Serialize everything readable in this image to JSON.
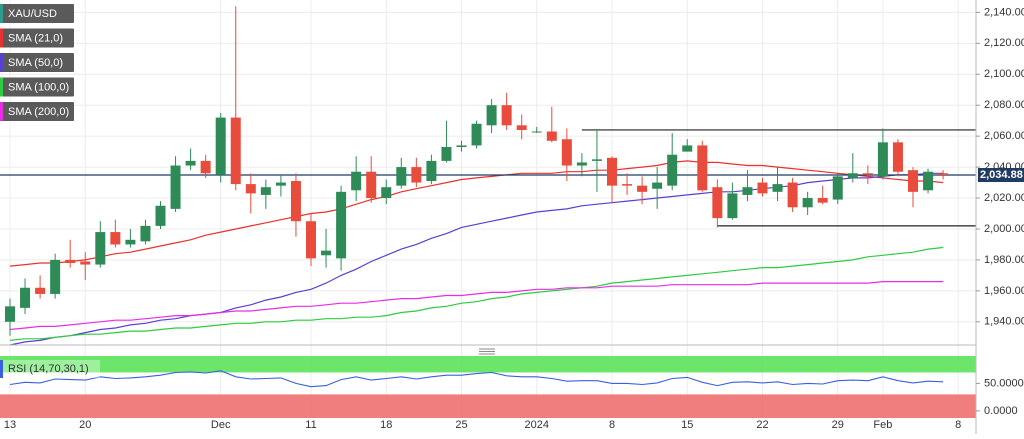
{
  "chart_data": [
    {
      "type": "candlestick",
      "symbol": "XAU/USD",
      "categories": [
        "13",
        null,
        null,
        null,
        null,
        "20",
        null,
        null,
        null,
        null,
        null,
        null,
        null,
        null,
        "Dec",
        null,
        null,
        null,
        null,
        null,
        "11",
        null,
        null,
        null,
        null,
        "18",
        null,
        null,
        null,
        null,
        "25",
        null,
        null,
        null,
        null,
        "2024",
        null,
        null,
        null,
        null,
        "8",
        null,
        null,
        null,
        null,
        "15",
        null,
        null,
        null,
        null,
        "22",
        null,
        null,
        null,
        null,
        "29",
        null,
        null,
        "Feb",
        null,
        null,
        null,
        null,
        "8"
      ],
      "open": [
        1940,
        1949,
        1962,
        1958,
        1980,
        1979,
        1977,
        1998,
        1990,
        1992,
        2002,
        2013,
        2041,
        2044,
        2035,
        2072,
        2029,
        2022,
        2028,
        2031,
        2005,
        1983,
        1981,
        2025,
        2037,
        2020,
        2028,
        2040,
        2031,
        2044,
        2053,
        2054,
        2067,
        2080,
        2067,
        2063,
        2063,
        2058,
        2041,
        2044,
        2046,
        2029,
        2028,
        2026,
        2028,
        2050,
        2054,
        2027,
        2007,
        2022,
        2030,
        2024,
        2030,
        2014,
        2020,
        2019,
        2033,
        2036,
        2034,
        2056,
        2038,
        2025,
        2036,
        null
      ],
      "high": [
        1955,
        1968,
        1970,
        1984,
        1993,
        1985,
        2005,
        2006,
        2000,
        2006,
        2018,
        2047,
        2052,
        2048,
        2075,
        2144,
        2036,
        2032,
        2035,
        2036,
        2010,
        2000,
        2028,
        2047,
        2047,
        2032,
        2046,
        2046,
        2048,
        2070,
        2057,
        2070,
        2084,
        2088,
        2074,
        2066,
        2079,
        2065,
        2049,
        2064,
        2047,
        2036,
        2034,
        2040,
        2062,
        2058,
        2057,
        2032,
        2030,
        2038,
        2033,
        2040,
        2033,
        2024,
        2028,
        2036,
        2049,
        2041,
        2065,
        2058,
        2040,
        2039,
        2038,
        null
      ],
      "low": [
        1931,
        1945,
        1955,
        1955,
        1975,
        1967,
        1975,
        1988,
        1988,
        1990,
        2000,
        2011,
        2038,
        2033,
        2030,
        2025,
        2010,
        2013,
        2021,
        1995,
        1976,
        1975,
        1973,
        2018,
        2017,
        2016,
        2026,
        2027,
        2029,
        2043,
        2050,
        2052,
        2062,
        2064,
        2058,
        2062,
        2056,
        2031,
        2034,
        2024,
        2017,
        2022,
        2016,
        2013,
        2025,
        2050,
        2024,
        2001,
        2006,
        2018,
        2021,
        2018,
        2011,
        2009,
        2016,
        2016,
        2030,
        2029,
        2032,
        2034,
        2014,
        2023,
        2032,
        null
      ],
      "close": [
        1950,
        1962,
        1958,
        1980,
        1978,
        1977,
        1998,
        1990,
        1993,
        2002,
        2015,
        2041,
        2044,
        2036,
        2072,
        2029,
        2023,
        2027,
        2030,
        2005,
        1981,
        1986,
        2024,
        2037,
        2020,
        2027,
        2040,
        2030,
        2044,
        2053,
        2054,
        2068,
        2080,
        2067,
        2064,
        2063,
        2057,
        2041,
        2043,
        2045,
        2028,
        2028,
        2024,
        2030,
        2048,
        2054,
        2025,
        2007,
        2023,
        2027,
        2023,
        2029,
        2014,
        2020,
        2017,
        2034,
        2036,
        2035,
        2056,
        2037,
        2024,
        2037,
        2034.88,
        null
      ],
      "up_color": "#2e8b57",
      "down_color": "#e74c3c",
      "series": [
        {
          "name": "SMA (21,0)",
          "color": "#e8322f",
          "values": [
            1976,
            1977,
            1978,
            1978,
            1979,
            1980,
            1982,
            1984,
            1985,
            1987,
            1989,
            1991,
            1993,
            1996,
            1998,
            2000,
            2002,
            2004,
            2006,
            2008,
            2010,
            2011,
            2013,
            2016,
            2019,
            2021,
            2024,
            2026,
            2028,
            2030,
            2032,
            2033,
            2034,
            2035,
            2036,
            2036,
            2036,
            2037,
            2037,
            2038,
            2038,
            2039,
            2040,
            2041,
            2043,
            2044,
            2043,
            2043,
            2042,
            2041,
            2041,
            2040,
            2039,
            2038,
            2037,
            2036,
            2035,
            2034,
            2033,
            2032,
            2031,
            2031,
            2030,
            null
          ]
        },
        {
          "name": "SMA (50,0)",
          "color": "#5b3fd1",
          "values": [
            1925,
            1927,
            1928,
            1930,
            1931,
            1933,
            1935,
            1936,
            1938,
            1939,
            1941,
            1942,
            1944,
            1945,
            1946,
            1949,
            1951,
            1954,
            1956,
            1959,
            1961,
            1965,
            1970,
            1974,
            1979,
            1983,
            1987,
            1990,
            1994,
            1997,
            2001,
            2003,
            2005,
            2007,
            2009,
            2011,
            2012,
            2013,
            2015,
            2016,
            2017,
            2018,
            2019,
            2020,
            2021,
            2022,
            2023,
            2024,
            2024,
            2025,
            2026,
            2027,
            2028,
            2030,
            2031,
            2032,
            2033,
            2033,
            2034,
            2035,
            2035,
            2036,
            2036,
            null
          ]
        },
        {
          "name": "SMA (100,0)",
          "color": "#2ecc40",
          "values": [
            1928,
            1929,
            1929,
            1930,
            1931,
            1932,
            1932,
            1933,
            1934,
            1934,
            1935,
            1936,
            1936,
            1937,
            1938,
            1939,
            1939,
            1940,
            1940,
            1941,
            1941,
            1942,
            1942,
            1943,
            1943,
            1944,
            1946,
            1947,
            1949,
            1950,
            1952,
            1953,
            1955,
            1956,
            1958,
            1959,
            1960,
            1961,
            1962,
            1963,
            1965,
            1966,
            1967,
            1968,
            1969,
            1970,
            1971,
            1972,
            1973,
            1974,
            1975,
            1975,
            1976,
            1977,
            1978,
            1979,
            1980,
            1982,
            1983,
            1984,
            1985,
            1987,
            1988,
            null
          ]
        },
        {
          "name": "SMA (200,0)",
          "color": "#e62ee6",
          "values": [
            1935,
            1936,
            1937,
            1937,
            1938,
            1939,
            1940,
            1941,
            1941,
            1942,
            1943,
            1944,
            1944,
            1945,
            1946,
            1947,
            1947,
            1948,
            1949,
            1950,
            1950,
            1951,
            1952,
            1952,
            1953,
            1954,
            1955,
            1955,
            1956,
            1957,
            1957,
            1958,
            1959,
            1959,
            1960,
            1961,
            1961,
            1962,
            1962,
            1962,
            1963,
            1963,
            1963,
            1963,
            1964,
            1964,
            1964,
            1964,
            1964,
            1964,
            1965,
            1965,
            1965,
            1965,
            1965,
            1965,
            1965,
            1965,
            1966,
            1966,
            1966,
            1966,
            1966,
            null
          ]
        }
      ],
      "levels": [
        {
          "value": 2064,
          "from": 38
        },
        {
          "value": 2002,
          "from": 47
        }
      ],
      "last_price": {
        "value": 2034.88,
        "label": "2,034.88"
      },
      "ylim": [
        1925,
        2148
      ],
      "yticks": [
        {
          "value": 1940,
          "label": "1,940.000"
        },
        {
          "value": 1960,
          "label": "1,960.000"
        },
        {
          "value": 1980,
          "label": "1,980.000"
        },
        {
          "value": 2000,
          "label": "2,000.000"
        },
        {
          "value": 2020,
          "label": "2,020.000"
        },
        {
          "value": 2040,
          "label": "2,040.000"
        },
        {
          "value": 2060,
          "label": "2,060.000"
        },
        {
          "value": 2080,
          "label": "2,080.000"
        },
        {
          "value": 2100,
          "label": "2,100.000"
        },
        {
          "value": 2120,
          "label": "2,120.000"
        },
        {
          "value": 2140,
          "label": "2,140.000"
        }
      ],
      "grid": true
    },
    {
      "type": "line",
      "title": "RSI (14,70,30,1)",
      "color": "#3b5fe0",
      "values": [
        48,
        52,
        51,
        58,
        57,
        56,
        62,
        59,
        60,
        62,
        65,
        70,
        71,
        69,
        73,
        62,
        58,
        59,
        60,
        50,
        44,
        46,
        57,
        62,
        56,
        59,
        62,
        58,
        62,
        65,
        65,
        68,
        70,
        64,
        62,
        62,
        59,
        54,
        55,
        55,
        50,
        50,
        48,
        51,
        59,
        61,
        52,
        46,
        52,
        53,
        51,
        53,
        48,
        50,
        49,
        55,
        56,
        55,
        62,
        55,
        51,
        54,
        53,
        null
      ],
      "overbought": 70,
      "overbought_color": "#5be35b",
      "oversold": 30,
      "oversold_color": "#f07070",
      "ylim": [
        -13,
        100
      ],
      "yticks": [
        {
          "value": 0,
          "label": "0.0000"
        },
        {
          "value": 50,
          "label": "50.0000"
        }
      ]
    }
  ]
}
